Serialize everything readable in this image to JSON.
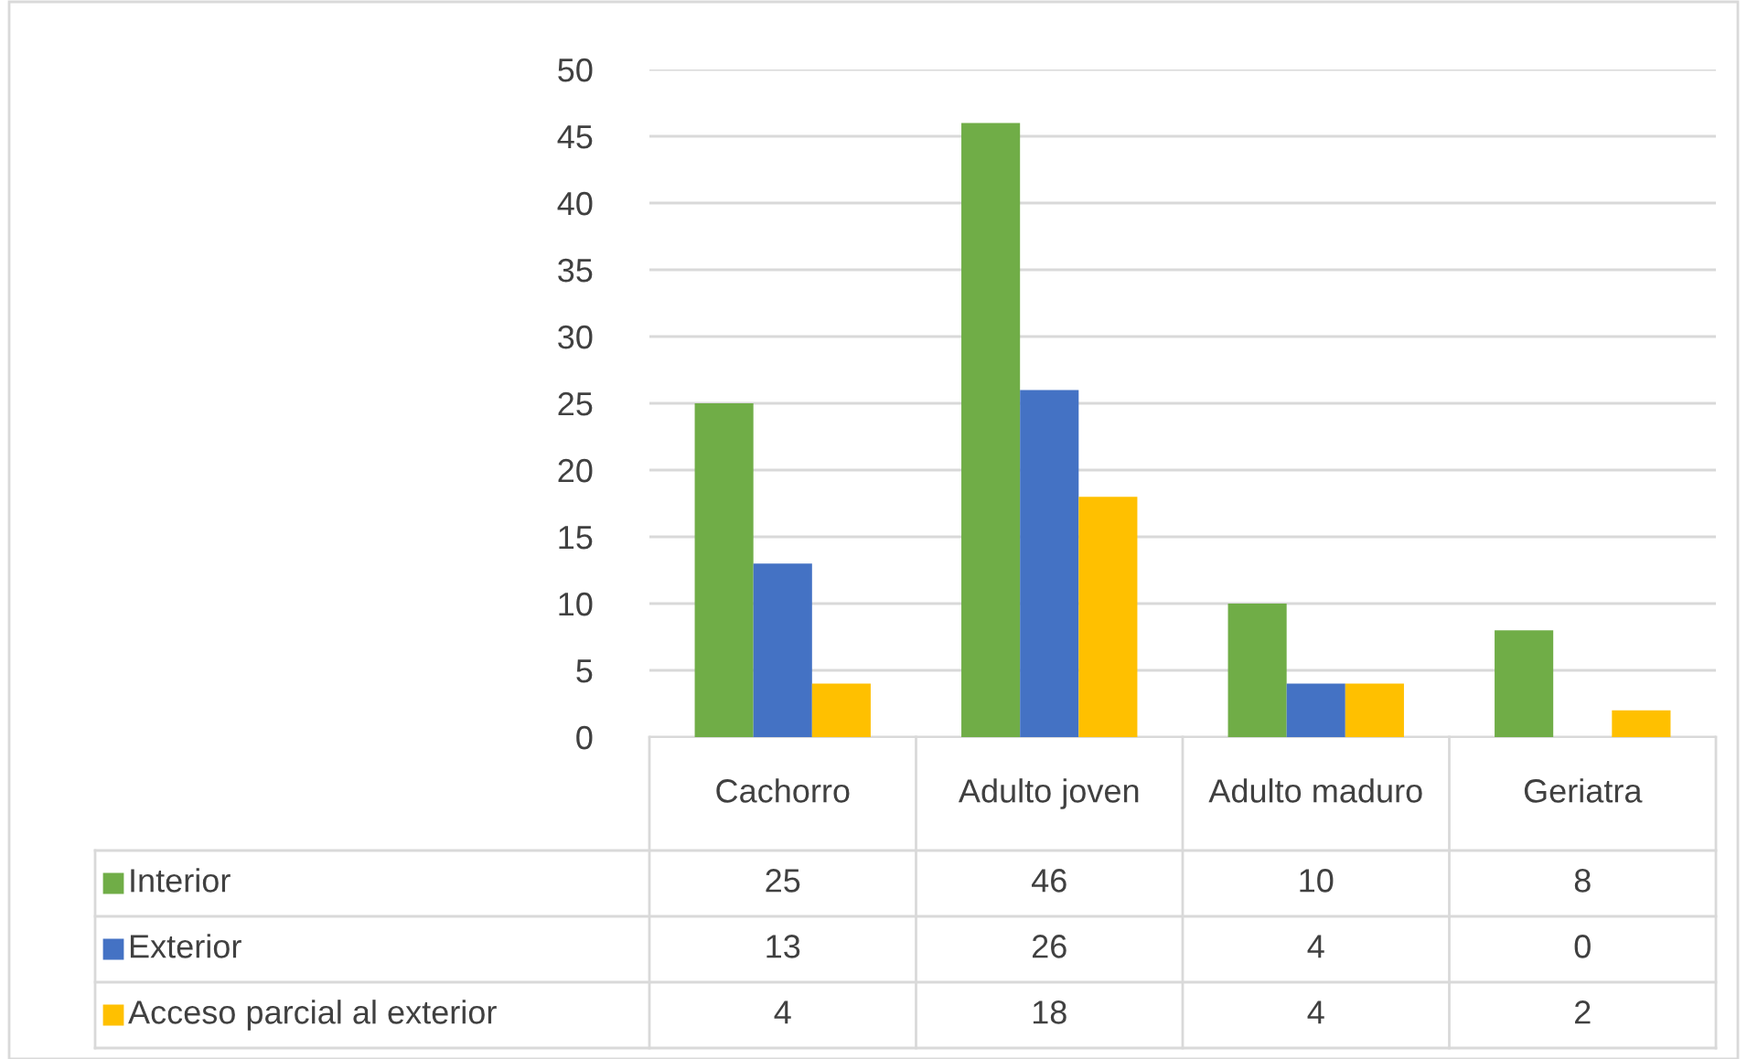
{
  "chart_data": {
    "type": "bar",
    "categories": [
      "Cachorro",
      "Adulto joven",
      "Adulto maduro",
      "Geriatra"
    ],
    "series": [
      {
        "name": "Interior",
        "color": "#70ad47",
        "values": [
          25,
          46,
          10,
          8
        ]
      },
      {
        "name": "Exterior",
        "color": "#4472c4",
        "values": [
          13,
          26,
          4,
          0
        ]
      },
      {
        "name": "Acceso parcial al exterior",
        "color": "#ffc000",
        "values": [
          4,
          18,
          4,
          2
        ]
      }
    ],
    "ylim": [
      0,
      50
    ],
    "yticks": [
      0,
      5,
      10,
      15,
      20,
      25,
      30,
      35,
      40,
      45,
      50
    ],
    "grid": "y",
    "legend": "bottom",
    "data_labels": true
  }
}
